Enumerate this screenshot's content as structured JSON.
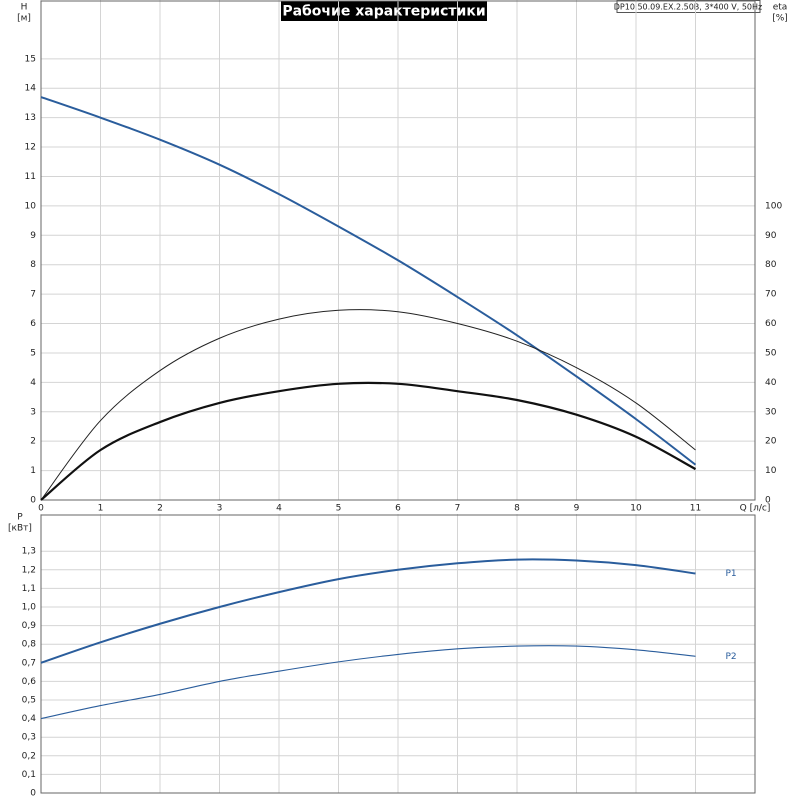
{
  "chart_data": [
    {
      "type": "line",
      "title": "Рабочие характеристики",
      "model": "DP10.50.09.EX.2.50B, 3*400 V, 50Hz",
      "y_label": "H",
      "y_unit": "[м]",
      "y2_label": "eta",
      "y2_unit": "[%]",
      "x_label": "Q [л/с]",
      "x": [
        0,
        1,
        2,
        3,
        4,
        5,
        6,
        7,
        8,
        9,
        10,
        11
      ],
      "xlim": [
        0,
        12
      ],
      "xticks": [
        0,
        1,
        2,
        3,
        4,
        5,
        6,
        7,
        8,
        9,
        10,
        11
      ],
      "ylim": [
        0,
        17
      ],
      "yticks": [
        0,
        1,
        2,
        3,
        4,
        5,
        6,
        7,
        8,
        9,
        10,
        11,
        12,
        13,
        14,
        15
      ],
      "y2lim": [
        0,
        170
      ],
      "y2ticks": [
        0,
        10,
        20,
        30,
        40,
        50,
        60,
        70,
        80,
        90,
        100
      ],
      "grid": true,
      "series": [
        {
          "color": "#2a5d9c",
          "width": 2,
          "values": [
            13.7,
            13.0,
            12.25,
            11.4,
            10.4,
            9.3,
            8.15,
            6.9,
            5.6,
            4.2,
            2.75,
            1.2
          ]
        },
        {
          "color": "#222222",
          "width": 1,
          "axis": "y2",
          "values": [
            0,
            27,
            44,
            55,
            61.5,
            64.5,
            64,
            60,
            54,
            45,
            33,
            17
          ]
        },
        {
          "color": "#111111",
          "width": 2.2,
          "axis": "y2",
          "values": [
            0,
            17,
            26.5,
            33,
            37,
            39.5,
            39.5,
            37,
            34,
            29,
            21.5,
            10.5
          ]
        }
      ]
    },
    {
      "type": "line",
      "y_label": "P",
      "y_unit": "[кВт]",
      "x": [
        0,
        1,
        2,
        3,
        4,
        5,
        6,
        7,
        8,
        9,
        10,
        11
      ],
      "xlim": [
        0,
        12
      ],
      "xticks": [
        0,
        1,
        2,
        3,
        4,
        5,
        6,
        7,
        8,
        9,
        10,
        11
      ],
      "ylim": [
        0,
        1.5
      ],
      "yticks": [
        0,
        {
          "value": 0.1,
          "label": "0,1"
        },
        {
          "value": 0.2,
          "label": "0,2"
        },
        {
          "value": 0.3,
          "label": "0,3"
        },
        {
          "value": 0.4,
          "label": "0,4"
        },
        {
          "value": 0.5,
          "label": "0,5"
        },
        {
          "value": 0.6,
          "label": "0,6"
        },
        {
          "value": 0.7,
          "label": "0,7"
        },
        {
          "value": 0.8,
          "label": "0,8"
        },
        {
          "value": 0.9,
          "label": "0,9"
        },
        {
          "value": 1.0,
          "label": "1,0"
        },
        {
          "value": 1.1,
          "label": "1,1"
        },
        {
          "value": 1.2,
          "label": "1,2"
        },
        {
          "value": 1.3,
          "label": "1,3"
        }
      ],
      "grid": true,
      "series": [
        {
          "name": "P1",
          "color": "#2a5d9c",
          "width": 2,
          "values": [
            0.7,
            0.81,
            0.91,
            1.0,
            1.08,
            1.15,
            1.2,
            1.235,
            1.255,
            1.25,
            1.225,
            1.18
          ]
        },
        {
          "name": "P2",
          "color": "#2a5d9c",
          "width": 1.1,
          "values": [
            0.4,
            0.47,
            0.53,
            0.6,
            0.655,
            0.705,
            0.745,
            0.775,
            0.79,
            0.79,
            0.77,
            0.735
          ]
        }
      ]
    }
  ]
}
